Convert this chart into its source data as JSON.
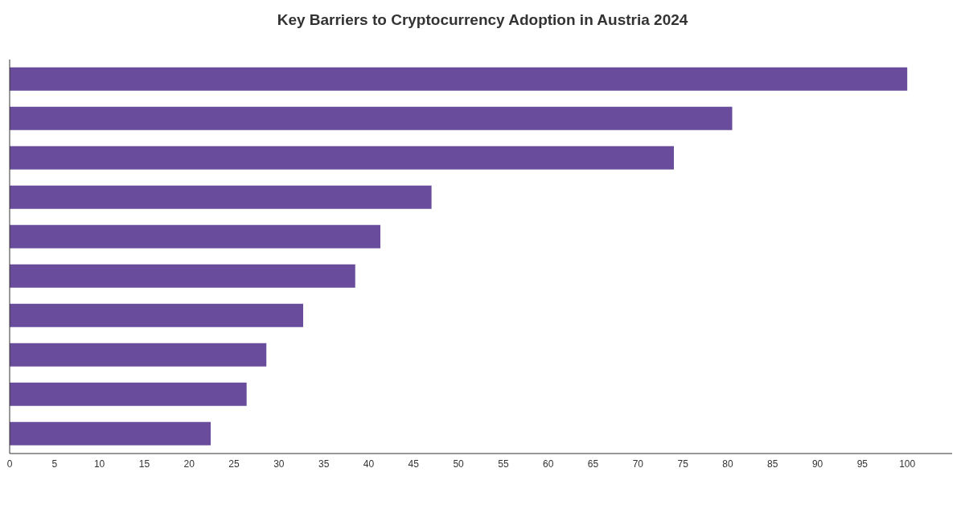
{
  "chart_data": {
    "type": "bar",
    "orientation": "horizontal",
    "title": "Key Barriers to Cryptocurrency Adoption in Austria 2024",
    "categories": [
      null,
      null,
      null,
      null,
      null,
      null,
      null,
      null,
      null,
      null
    ],
    "values": [
      100,
      80.5,
      74,
      47,
      41.3,
      38.5,
      32.7,
      28.6,
      26.4,
      22.4
    ],
    "color": "#6a4c9c",
    "xlim": [
      0,
      105
    ],
    "xticks": [
      0,
      5,
      10,
      15,
      20,
      25,
      30,
      35,
      40,
      45,
      50,
      55,
      60,
      65,
      70,
      75,
      80,
      85,
      90,
      95,
      100
    ],
    "tick_labels": "x"
  }
}
